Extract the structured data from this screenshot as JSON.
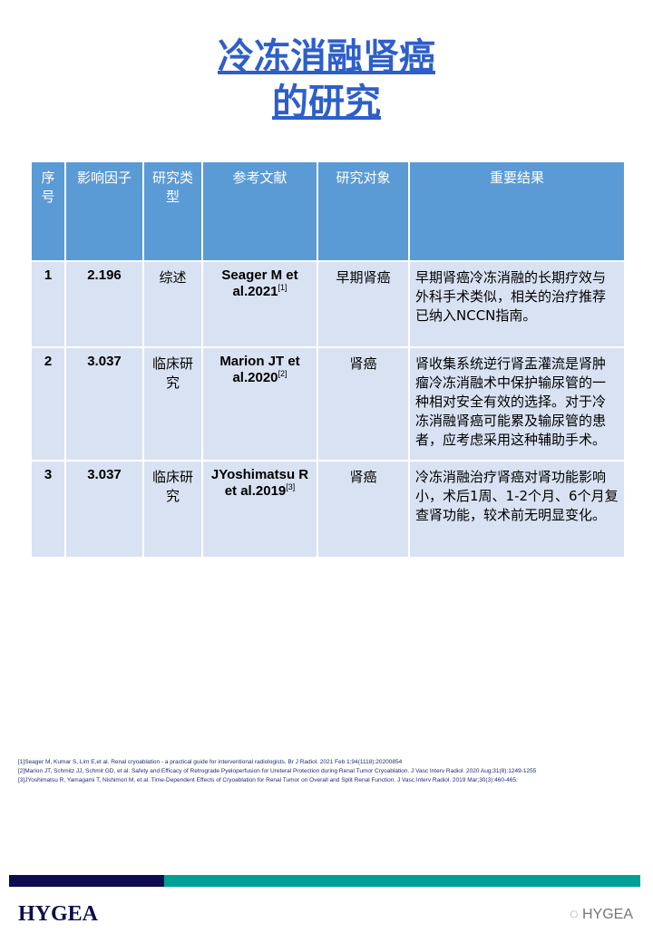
{
  "title_line1": "冷冻消融肾癌",
  "title_line2": "的研究",
  "table": {
    "headers": [
      "序号",
      "影响因子",
      "研究类型",
      "参考文献",
      "研究对象",
      "重要结果"
    ],
    "rows": [
      {
        "no": "1",
        "if": "2.196",
        "type": "综述",
        "ref": "Seager M et al.2021",
        "sup": "[1]",
        "subject": "早期肾癌",
        "result": "早期肾癌冷冻消融的长期疗效与外科手术类似，相关的治疗推荐已纳入NCCN指南。"
      },
      {
        "no": "2",
        "if": "3.037",
        "type": "临床研究",
        "ref": "Marion JT et al.2020",
        "sup": "[2]",
        "subject": "肾癌",
        "result": "肾收集系统逆行肾盂灌流是肾肿瘤冷冻消融术中保护输尿管的一种相对安全有效的选择。对于冷冻消融肾癌可能累及输尿管的患者，应考虑采用这种辅助手术。"
      },
      {
        "no": "3",
        "if": "3.037",
        "type": "临床研究",
        "ref": "JYoshimatsu R et al.2019",
        "sup": "[3]",
        "subject": "肾癌",
        "result": " 冷冻消融治疗肾癌对肾功能影响小，术后1周、1-2个月、6个月复查肾功能，较术前无明显变化。"
      }
    ]
  },
  "references": [
    "[1]Seager M, Kumar S, Lim E,et al. Renal cryoablation - a practical guide for interventional radiologists. Br J Radiol. 2021 Feb 1;94(1118):20200854",
    "[2]Marion JT, Schmitz JJ, Schmit GD, et al. Safety and Efficacy of Retrograde Pyeloperfusion for Ureteral Protection during Renal Tumor Cryoablation. J Vasc Interv Radiol. 2020 Aug;31(8):1249-1255",
    "[3]JYoshimatsu R, Yamagami T, Nishimori M, et al. Time-Dependent Effects of Cryoablation for Renal Tumor on Overall and Split Renal Function. J Vasc Interv Radiol. 2019 Mar;30(3):460-465."
  ],
  "footer": {
    "logo": "HYGEA",
    "watermark": "HYGEA"
  },
  "colors": {
    "title": "#2e5fc9",
    "header": "#5b9bd5",
    "row": "#d9e2f3",
    "navy": "#0c0c4e",
    "teal": "#00a096"
  }
}
